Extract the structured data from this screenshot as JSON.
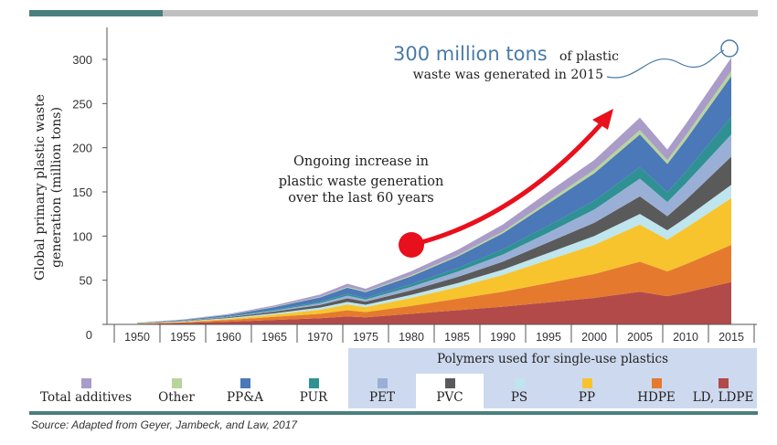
{
  "colors": {
    "accent_bar": "#4a7f7e",
    "gray_bar": "#c0c0c0",
    "panel": "#cdd9ee",
    "arrow": "#e8101c",
    "highlight_text": "#4a7aa8"
  },
  "callout": {
    "big": "300 million tons",
    "rest_line1": "of plastic",
    "line2": "waste was generated in 2015"
  },
  "annotation": {
    "line1": "Ongoing increase in",
    "line2": "plastic waste generation",
    "line3": "over the last 60 years"
  },
  "legend": {
    "polymer_group_title": "Polymers used for single-use plastics",
    "items": [
      {
        "label": "Total additives",
        "color": "#a99cc8"
      },
      {
        "label": "Other",
        "color": "#b9d49b"
      },
      {
        "label": "PP&A",
        "color": "#4a78b8"
      },
      {
        "label": "PUR",
        "color": "#2f9194"
      },
      {
        "label": "PET",
        "color": "#9aafd6"
      },
      {
        "label": "PVC",
        "color": "#5a5a5a"
      },
      {
        "label": "PS",
        "color": "#bfe5ee"
      },
      {
        "label": "PP",
        "color": "#f7c42e"
      },
      {
        "label": "HDPE",
        "color": "#e57a2e"
      },
      {
        "label": "LD, LDPE",
        "color": "#b34a4a"
      }
    ]
  },
  "source": "Source:   Adapted from Geyer, Jambeck, and Law, 2017",
  "chart_data": {
    "type": "area",
    "stacked": true,
    "ylabel": "Global primary plastic waste generation (million tons)",
    "ylabel_lines": [
      "Global primary plastic waste",
      "generation (million tons)"
    ],
    "xlabel": "",
    "ylim": [
      0,
      320
    ],
    "y_ticks": [
      0,
      50,
      100,
      150,
      200,
      250,
      300
    ],
    "x_ticks": [
      1950,
      1955,
      1960,
      1965,
      1970,
      1975,
      1980,
      1985,
      1990,
      1995,
      2000,
      2005,
      2010,
      2015
    ],
    "x": [
      1950,
      1955,
      1960,
      1965,
      1970,
      1973,
      1975,
      1980,
      1985,
      1990,
      1995,
      2000,
      2005,
      2008,
      2010,
      2015
    ],
    "series": [
      {
        "name": "LD, LDPE",
        "values": [
          0.5,
          1.5,
          3,
          5,
          7,
          9,
          8,
          12,
          16,
          20,
          25,
          30,
          37,
          32,
          36,
          48
        ]
      },
      {
        "name": "HDPE",
        "values": [
          0.3,
          0.8,
          2,
          3.5,
          5,
          7,
          6,
          9,
          13,
          17,
          22,
          27,
          34,
          28,
          32,
          42
        ]
      },
      {
        "name": "PP",
        "values": [
          0.2,
          0.5,
          1.2,
          2.5,
          4.5,
          6.5,
          5.5,
          9,
          13,
          19,
          26,
          33,
          42,
          36,
          41,
          53
        ]
      },
      {
        "name": "PS",
        "values": [
          0.2,
          0.5,
          1,
          1.5,
          2.5,
          3,
          2.7,
          3.5,
          4.5,
          6,
          8,
          10,
          12,
          10.5,
          11.5,
          15
        ]
      },
      {
        "name": "PVC",
        "values": [
          0.2,
          0.5,
          1,
          2,
          3,
          4,
          3.5,
          5,
          7,
          9,
          12,
          15,
          20,
          16,
          20,
          32
        ]
      },
      {
        "name": "PET",
        "values": [
          0,
          0.2,
          0.5,
          1,
          2,
          3,
          2.5,
          4,
          6,
          8,
          11,
          15,
          20,
          16,
          19,
          25
        ]
      },
      {
        "name": "PUR",
        "values": [
          0,
          0.2,
          0.5,
          1,
          1.5,
          2,
          1.8,
          3,
          4,
          6,
          8,
          10,
          13,
          11,
          13,
          20
        ]
      },
      {
        "name": "PP&A",
        "values": [
          0.3,
          0.7,
          1.5,
          3,
          5,
          7,
          6.5,
          9,
          13,
          18,
          25,
          31,
          37,
          32,
          36,
          46
        ]
      },
      {
        "name": "Other",
        "values": [
          0.1,
          0.2,
          0.3,
          0.5,
          0.7,
          1,
          0.9,
          1.2,
          1.5,
          2,
          3,
          4,
          5,
          4.5,
          5,
          6
        ]
      },
      {
        "name": "Total additives",
        "values": [
          0.2,
          0.4,
          0.8,
          1.5,
          2.5,
          3.5,
          3,
          4.5,
          6,
          8,
          10,
          11,
          14,
          12,
          13,
          15
        ]
      }
    ]
  }
}
